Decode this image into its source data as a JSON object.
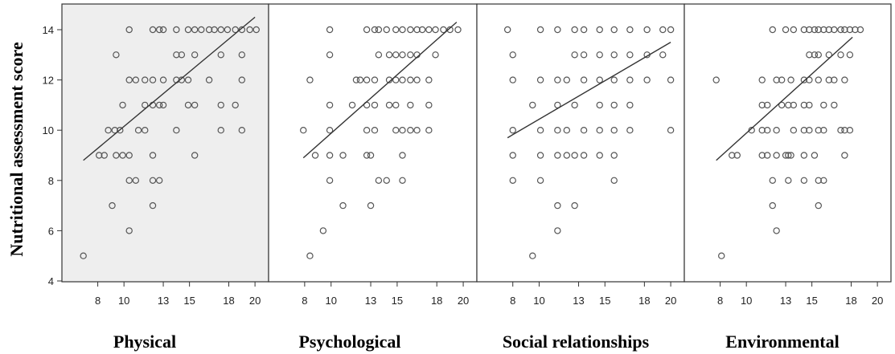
{
  "chart_data": {
    "type": "scatter",
    "ylabel": "Nutritional assessment score",
    "ylim": [
      4,
      15
    ],
    "yticks": [
      4,
      6,
      8,
      10,
      12,
      14
    ],
    "xlim": [
      6,
      20.3
    ],
    "xticks": [
      8,
      10,
      13,
      15,
      18,
      20
    ],
    "xtick_labels": [
      "8",
      "10",
      "13",
      "15",
      "18",
      "20"
    ],
    "grid": false,
    "panels": [
      {
        "title": "Physical",
        "highlighted": true,
        "trend": {
          "x": [
            6.9,
            20
          ],
          "y": [
            8.8,
            14.5
          ]
        },
        "points": [
          [
            6.9,
            5
          ],
          [
            9.1,
            7
          ],
          [
            10.4,
            6
          ],
          [
            12.2,
            7
          ],
          [
            8.1,
            9
          ],
          [
            8.5,
            9
          ],
          [
            9.4,
            9
          ],
          [
            9.9,
            9
          ],
          [
            10.4,
            9
          ],
          [
            12.2,
            9
          ],
          [
            15.4,
            9
          ],
          [
            8.8,
            10
          ],
          [
            9.3,
            10
          ],
          [
            9.7,
            10
          ],
          [
            11.1,
            10
          ],
          [
            11.6,
            10
          ],
          [
            14,
            10
          ],
          [
            17.4,
            10
          ],
          [
            19,
            10
          ],
          [
            10.4,
            8
          ],
          [
            10.9,
            8
          ],
          [
            12.2,
            8
          ],
          [
            12.7,
            8
          ],
          [
            9.9,
            11
          ],
          [
            11.6,
            11
          ],
          [
            12.2,
            11
          ],
          [
            12.7,
            11
          ],
          [
            13,
            11
          ],
          [
            14.9,
            11
          ],
          [
            15.4,
            11
          ],
          [
            17.4,
            11
          ],
          [
            18.5,
            11
          ],
          [
            10.4,
            12
          ],
          [
            10.9,
            12
          ],
          [
            11.6,
            12
          ],
          [
            12.2,
            12
          ],
          [
            13,
            12
          ],
          [
            14,
            12
          ],
          [
            14.4,
            12
          ],
          [
            14.9,
            12
          ],
          [
            16.5,
            12
          ],
          [
            19,
            12
          ],
          [
            9.4,
            13
          ],
          [
            14,
            13
          ],
          [
            14.4,
            13
          ],
          [
            15.4,
            13
          ],
          [
            17.4,
            13
          ],
          [
            19,
            13
          ],
          [
            10.4,
            14
          ],
          [
            12.2,
            14
          ],
          [
            12.7,
            14
          ],
          [
            13,
            14
          ],
          [
            14,
            14
          ],
          [
            14.9,
            14
          ],
          [
            15.4,
            14
          ],
          [
            15.9,
            14
          ],
          [
            16.5,
            14
          ],
          [
            16.9,
            14
          ],
          [
            17.4,
            14
          ],
          [
            17.9,
            14
          ],
          [
            18.5,
            14
          ],
          [
            19,
            14
          ],
          [
            19.6,
            14
          ],
          [
            20.1,
            14
          ]
        ]
      },
      {
        "title": "Psychological",
        "highlighted": false,
        "trend": {
          "x": [
            7.9,
            19.5
          ],
          "y": [
            8.9,
            14.3
          ]
        },
        "points": [
          [
            8.4,
            5
          ],
          [
            9.4,
            6
          ],
          [
            10.9,
            7
          ],
          [
            13,
            7
          ],
          [
            9.9,
            8
          ],
          [
            13.6,
            8
          ],
          [
            14.2,
            8
          ],
          [
            15.4,
            8
          ],
          [
            8.8,
            9
          ],
          [
            9.9,
            9
          ],
          [
            10.9,
            9
          ],
          [
            12.7,
            9
          ],
          [
            13,
            9
          ],
          [
            15.4,
            9
          ],
          [
            7.9,
            10
          ],
          [
            9.9,
            10
          ],
          [
            12.7,
            10
          ],
          [
            13.3,
            10
          ],
          [
            14.9,
            10
          ],
          [
            15.4,
            10
          ],
          [
            16,
            10
          ],
          [
            16.5,
            10
          ],
          [
            17.4,
            10
          ],
          [
            9.9,
            11
          ],
          [
            11.6,
            11
          ],
          [
            12.7,
            11
          ],
          [
            13.3,
            11
          ],
          [
            14.4,
            11
          ],
          [
            14.9,
            11
          ],
          [
            16,
            11
          ],
          [
            17.4,
            11
          ],
          [
            8.4,
            12
          ],
          [
            11.9,
            12
          ],
          [
            12.2,
            12
          ],
          [
            12.7,
            12
          ],
          [
            13.3,
            12
          ],
          [
            14.4,
            12
          ],
          [
            14.9,
            12
          ],
          [
            15.4,
            12
          ],
          [
            16,
            12
          ],
          [
            16.5,
            12
          ],
          [
            17.4,
            12
          ],
          [
            9.9,
            13
          ],
          [
            13.6,
            13
          ],
          [
            14.4,
            13
          ],
          [
            14.9,
            13
          ],
          [
            15.4,
            13
          ],
          [
            16,
            13
          ],
          [
            16.5,
            13
          ],
          [
            17.9,
            13
          ],
          [
            9.9,
            14
          ],
          [
            12.7,
            14
          ],
          [
            13.3,
            14
          ],
          [
            13.6,
            14
          ],
          [
            14.2,
            14
          ],
          [
            14.9,
            14
          ],
          [
            15.4,
            14
          ],
          [
            16,
            14
          ],
          [
            16.5,
            14
          ],
          [
            16.9,
            14
          ],
          [
            17.4,
            14
          ],
          [
            17.9,
            14
          ],
          [
            18.5,
            14
          ],
          [
            19,
            14
          ],
          [
            19.6,
            14
          ]
        ]
      },
      {
        "title": "Social relationships",
        "highlighted": false,
        "trend": {
          "x": [
            7.6,
            20
          ],
          "y": [
            9.7,
            13.5
          ]
        },
        "points": [
          [
            9.5,
            5
          ],
          [
            11.4,
            6
          ],
          [
            11.4,
            7
          ],
          [
            12.7,
            7
          ],
          [
            8,
            8
          ],
          [
            10.1,
            8
          ],
          [
            15.7,
            8
          ],
          [
            8,
            9
          ],
          [
            10.1,
            9
          ],
          [
            11.4,
            9
          ],
          [
            12.1,
            9
          ],
          [
            12.7,
            9
          ],
          [
            13.4,
            9
          ],
          [
            14.6,
            9
          ],
          [
            15.7,
            9
          ],
          [
            8,
            10
          ],
          [
            10.1,
            10
          ],
          [
            11.4,
            10
          ],
          [
            12.1,
            10
          ],
          [
            13.4,
            10
          ],
          [
            14.6,
            10
          ],
          [
            15.7,
            10
          ],
          [
            16.9,
            10
          ],
          [
            20,
            10
          ],
          [
            9.5,
            11
          ],
          [
            11.4,
            11
          ],
          [
            12.7,
            11
          ],
          [
            14.6,
            11
          ],
          [
            15.7,
            11
          ],
          [
            16.9,
            11
          ],
          [
            8,
            12
          ],
          [
            10.1,
            12
          ],
          [
            11.4,
            12
          ],
          [
            12.1,
            12
          ],
          [
            13.4,
            12
          ],
          [
            14.6,
            12
          ],
          [
            15.7,
            12
          ],
          [
            16.9,
            12
          ],
          [
            18.2,
            12
          ],
          [
            20,
            12
          ],
          [
            8,
            13
          ],
          [
            12.7,
            13
          ],
          [
            13.4,
            13
          ],
          [
            14.6,
            13
          ],
          [
            15.7,
            13
          ],
          [
            16.9,
            13
          ],
          [
            18.2,
            13
          ],
          [
            19.4,
            13
          ],
          [
            7.6,
            14
          ],
          [
            10.1,
            14
          ],
          [
            11.4,
            14
          ],
          [
            12.7,
            14
          ],
          [
            13.4,
            14
          ],
          [
            14.6,
            14
          ],
          [
            15.7,
            14
          ],
          [
            16.9,
            14
          ],
          [
            18.2,
            14
          ],
          [
            19.4,
            14
          ],
          [
            20,
            14
          ]
        ]
      },
      {
        "title": "Environmental",
        "highlighted": false,
        "trend": {
          "x": [
            7.7,
            18.1
          ],
          "y": [
            8.8,
            13.7
          ]
        },
        "points": [
          [
            8.1,
            5
          ],
          [
            12.3,
            6
          ],
          [
            12,
            7
          ],
          [
            15.5,
            7
          ],
          [
            12,
            8
          ],
          [
            13.2,
            8
          ],
          [
            14.4,
            8
          ],
          [
            15.5,
            8
          ],
          [
            15.9,
            8
          ],
          [
            8.9,
            9
          ],
          [
            9.3,
            9
          ],
          [
            11.2,
            9
          ],
          [
            11.6,
            9
          ],
          [
            12.3,
            9
          ],
          [
            13,
            9
          ],
          [
            13.2,
            9
          ],
          [
            13.4,
            9
          ],
          [
            14.4,
            9
          ],
          [
            15.2,
            9
          ],
          [
            17.5,
            9
          ],
          [
            10.4,
            10
          ],
          [
            11.2,
            10
          ],
          [
            11.6,
            10
          ],
          [
            12.3,
            10
          ],
          [
            13.6,
            10
          ],
          [
            14.4,
            10
          ],
          [
            14.8,
            10
          ],
          [
            15.5,
            10
          ],
          [
            15.9,
            10
          ],
          [
            17.2,
            10
          ],
          [
            17.5,
            10
          ],
          [
            17.9,
            10
          ],
          [
            11.2,
            11
          ],
          [
            11.6,
            11
          ],
          [
            12.7,
            11
          ],
          [
            13.2,
            11
          ],
          [
            13.6,
            11
          ],
          [
            14.4,
            11
          ],
          [
            14.8,
            11
          ],
          [
            15.9,
            11
          ],
          [
            16.7,
            11
          ],
          [
            7.7,
            12
          ],
          [
            11.2,
            12
          ],
          [
            12.3,
            12
          ],
          [
            12.7,
            12
          ],
          [
            13.4,
            12
          ],
          [
            14.4,
            12
          ],
          [
            14.8,
            12
          ],
          [
            15.5,
            12
          ],
          [
            16.3,
            12
          ],
          [
            16.7,
            12
          ],
          [
            17.5,
            12
          ],
          [
            14.8,
            13
          ],
          [
            15.2,
            13
          ],
          [
            15.5,
            13
          ],
          [
            16.3,
            13
          ],
          [
            17.2,
            13
          ],
          [
            17.9,
            13
          ],
          [
            12,
            14
          ],
          [
            13,
            14
          ],
          [
            13.6,
            14
          ],
          [
            14.4,
            14
          ],
          [
            14.8,
            14
          ],
          [
            15.2,
            14
          ],
          [
            15.5,
            14
          ],
          [
            15.9,
            14
          ],
          [
            16.3,
            14
          ],
          [
            16.7,
            14
          ],
          [
            17.2,
            14
          ],
          [
            17.5,
            14
          ],
          [
            17.9,
            14
          ],
          [
            18.3,
            14
          ],
          [
            18.7,
            14
          ]
        ]
      }
    ]
  }
}
